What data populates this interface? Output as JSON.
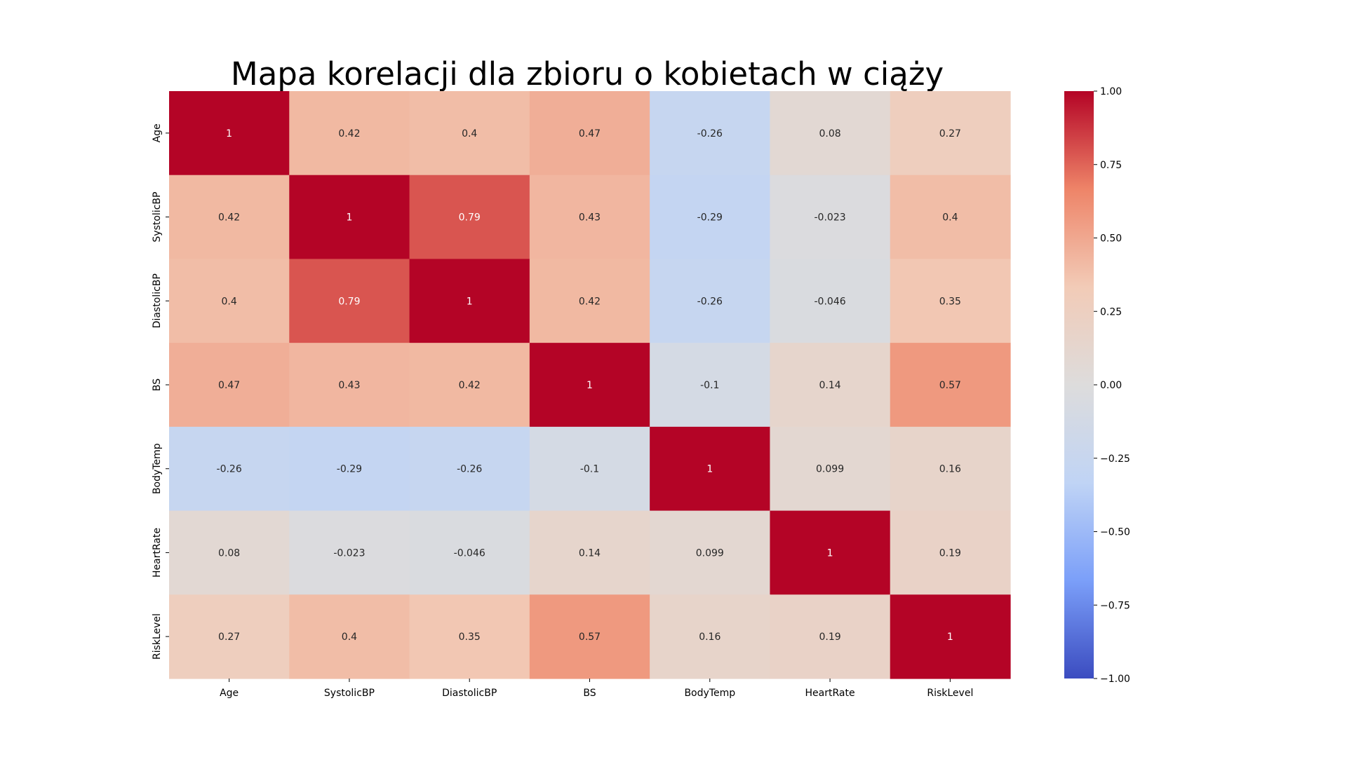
{
  "chart_data": {
    "type": "heatmap",
    "title": "Mapa korelacji dla zbioru o kobietach w ciąży",
    "variables": [
      "Age",
      "SystolicBP",
      "DiastolicBP",
      "BS",
      "BodyTemp",
      "HeartRate",
      "RiskLevel"
    ],
    "annotations": [
      [
        "1",
        "0.42",
        "0.4",
        "0.47",
        "-0.26",
        "0.08",
        "0.27"
      ],
      [
        "0.42",
        "1",
        "0.79",
        "0.43",
        "-0.29",
        "-0.023",
        "0.4"
      ],
      [
        "0.4",
        "0.79",
        "1",
        "0.42",
        "-0.26",
        "-0.046",
        "0.35"
      ],
      [
        "0.47",
        "0.43",
        "0.42",
        "1",
        "-0.1",
        "0.14",
        "0.57"
      ],
      [
        "-0.26",
        "-0.29",
        "-0.26",
        "-0.1",
        "1",
        "0.099",
        "0.16"
      ],
      [
        "0.08",
        "-0.023",
        "-0.046",
        "0.14",
        "0.099",
        "1",
        "0.19"
      ],
      [
        "0.27",
        "0.4",
        "0.35",
        "0.57",
        "0.16",
        "0.19",
        "1"
      ]
    ],
    "colormap": "coolwarm",
    "value_range": [
      -1.0,
      1.0
    ],
    "colorbar_ticks": [
      "1.00",
      "0.75",
      "0.50",
      "0.25",
      "0.00",
      "−0.25",
      "−0.50",
      "−0.75",
      "−1.00"
    ],
    "colorbar_stops": [
      "#3b4cc0",
      "#7b9ff9",
      "#c0d4f5",
      "#dddcdc",
      "#f2cbb7",
      "#ee8468",
      "#b40426"
    ],
    "annotation_colors": {
      "light": "#ffffff",
      "dark": "#262626"
    }
  }
}
